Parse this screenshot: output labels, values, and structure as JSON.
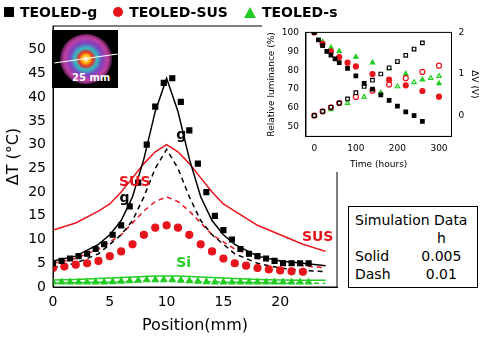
{
  "chart_data": [
    {
      "type": "scatter",
      "x_label": "Position(mm)",
      "y_label": "ΔT (°C)",
      "xlim": [
        0,
        25
      ],
      "xticks": [
        0,
        5,
        10,
        15,
        20
      ],
      "ylim": [
        0,
        55
      ],
      "yticks": [
        0,
        5,
        10,
        15,
        20,
        25,
        30,
        35,
        40,
        45,
        50
      ],
      "grid": false,
      "legend": "top",
      "series": [
        {
          "name": "TEOLED-g",
          "color": "#000000",
          "marker": "square",
          "type": "scatter",
          "x": [
            0,
            0.75,
            1.5,
            2.25,
            3,
            3.75,
            4.5,
            5.25,
            6,
            6.75,
            7.5,
            8.25,
            9,
            9.75,
            10.5,
            11.25,
            12,
            12.75,
            13.5,
            14.25,
            15,
            15.75,
            16.5,
            17.25,
            18,
            18.75,
            19.5,
            20.25,
            21,
            21.75,
            22.5
          ],
          "values": [
            5,
            5.5,
            6,
            6.5,
            7,
            8,
            9,
            11,
            13,
            17,
            22,
            30,
            38,
            43,
            44,
            39,
            33,
            26,
            20,
            15,
            12,
            10,
            8,
            7,
            6.5,
            6,
            5.5,
            5,
            5,
            5,
            5
          ]
        },
        {
          "name": "TEOLED-SUS",
          "color": "#e8141c",
          "marker": "circle",
          "type": "scatter",
          "x": [
            0,
            1,
            2,
            3,
            4,
            5,
            6,
            7,
            8,
            9,
            10,
            11,
            12,
            13,
            14,
            15,
            16,
            17,
            18,
            19,
            20,
            21,
            22
          ],
          "values": [
            4,
            4.3,
            4.7,
            5,
            5.5,
            6.5,
            7.5,
            9,
            11,
            12.5,
            13,
            12.5,
            11,
            9,
            7.5,
            6,
            5,
            4.5,
            4,
            3.7,
            3.5,
            3.3,
            3.2
          ]
        },
        {
          "name": "TEOLED-s",
          "color": "#22cc22",
          "marker": "triangle",
          "type": "scatter",
          "x": [
            0,
            0.75,
            1.5,
            2.25,
            3,
            3.75,
            4.5,
            5.25,
            6,
            6.75,
            7.5,
            8.25,
            9,
            9.75,
            10.5,
            11.25,
            12,
            12.75,
            13.5,
            14.25,
            15,
            15.75,
            16.5,
            17.25,
            18,
            18.75,
            19.5,
            20.25,
            21,
            21.75,
            22.5
          ],
          "values": [
            1,
            1,
            1,
            1,
            1,
            1,
            1,
            1.1,
            1.2,
            1.3,
            1.4,
            1.5,
            1.5,
            1.5,
            1.5,
            1.4,
            1.3,
            1.2,
            1.1,
            1,
            1,
            1,
            1,
            1,
            1,
            1,
            1,
            1,
            1,
            1,
            1
          ]
        },
        {
          "color": "#000000",
          "type": "line",
          "line_style": "solid",
          "x": [
            0,
            2,
            4,
            5,
            6,
            7,
            8,
            9,
            10,
            11,
            12,
            13,
            14,
            15,
            16,
            18,
            20,
            22,
            24
          ],
          "values": [
            5.5,
            6.5,
            9,
            11,
            14,
            19,
            27,
            37,
            44,
            37,
            27,
            19,
            14,
            11,
            9,
            6.5,
            5.5,
            5,
            4.5
          ]
        },
        {
          "color": "#000000",
          "type": "line",
          "line_style": "dashed",
          "x": [
            0,
            2,
            4,
            5,
            6,
            7,
            8,
            9,
            10,
            11,
            12,
            13,
            14,
            15,
            16,
            18,
            20,
            22,
            24
          ],
          "values": [
            4,
            5,
            7,
            9,
            11,
            14,
            19,
            25,
            29,
            25,
            19,
            14,
            11,
            9,
            7,
            5,
            4,
            3.5,
            3.2
          ]
        },
        {
          "color": "#e8141c",
          "type": "line",
          "line_style": "solid",
          "x": [
            0,
            2,
            4,
            5,
            6,
            7,
            8,
            9,
            10,
            11,
            12,
            13,
            14,
            15,
            16,
            18,
            20,
            22,
            24
          ],
          "values": [
            12,
            13.5,
            16,
            17.5,
            20,
            23,
            26,
            28.5,
            30,
            28.5,
            26,
            23,
            20,
            17.5,
            16,
            13,
            11,
            9,
            7.5
          ]
        },
        {
          "color": "#e8141c",
          "type": "line",
          "line_style": "dashed",
          "x": [
            0,
            2,
            4,
            5,
            6,
            7,
            8,
            9,
            10,
            11,
            12,
            13,
            14,
            15,
            16,
            18,
            20,
            22,
            24
          ],
          "values": [
            5,
            6,
            8,
            9.5,
            11,
            13.5,
            16,
            18,
            19,
            18,
            16,
            13.5,
            11,
            9.5,
            8,
            6,
            5,
            4.5,
            4
          ]
        },
        {
          "color": "#22cc22",
          "type": "line",
          "line_style": "solid",
          "x": [
            0,
            2,
            4,
            5,
            6,
            7,
            8,
            9,
            10,
            11,
            12,
            13,
            14,
            15,
            16,
            18,
            20,
            22,
            24
          ],
          "values": [
            1.5,
            1.6,
            1.8,
            1.9,
            2,
            2.1,
            2.2,
            2.3,
            2.3,
            2.3,
            2.2,
            2.1,
            2,
            1.9,
            1.8,
            1.6,
            1.5,
            1.4,
            1.4
          ]
        },
        {
          "color": "#22cc22",
          "type": "line",
          "line_style": "dashed",
          "x": [
            0,
            2,
            4,
            5,
            6,
            7,
            8,
            9,
            10,
            11,
            12,
            13,
            14,
            15,
            16,
            18,
            20,
            22,
            24
          ],
          "values": [
            0.8,
            0.9,
            1,
            1,
            1.1,
            1.1,
            1.2,
            1.2,
            1.2,
            1.2,
            1.2,
            1.1,
            1.1,
            1,
            1,
            0.9,
            0.8,
            0.8,
            0.8
          ]
        }
      ],
      "annotations": [
        {
          "text": "g",
          "x": 11.3,
          "y": 32,
          "color": "#000000"
        },
        {
          "text": "g",
          "x": 6.3,
          "y": 18.6,
          "color": "#000000"
        },
        {
          "text": "SUS",
          "x": 7.2,
          "y": 22,
          "color": "#e8141c"
        },
        {
          "text": "SUS",
          "x": 23.3,
          "y": 10.5,
          "color": "#e8141c"
        },
        {
          "text": "Si",
          "x": 11.5,
          "y": 5,
          "color": "#22cc22"
        }
      ],
      "simulation_legend": {
        "title": "Simulation Data",
        "column": "h",
        "rows": [
          {
            "label": "Solid",
            "value": 0.005
          },
          {
            "label": "Dash",
            "value": 0.01
          }
        ]
      },
      "image_inset": {
        "label": "25 mm"
      }
    },
    {
      "type": "scatter",
      "x_label": "Time (hours)",
      "y_label": "Relative luminance (%)",
      "y2_label": "ΔV (V)",
      "xlim": [
        -20,
        330
      ],
      "xticks": [
        0,
        100,
        200,
        300
      ],
      "ylim": [
        45,
        100
      ],
      "yticks": [
        50,
        60,
        70,
        80,
        90,
        100
      ],
      "y2lim": [
        -0.5,
        2
      ],
      "y2ticks": [
        0,
        1,
        2
      ],
      "grid": false,
      "series": [
        {
          "color": "#000000",
          "marker": "square",
          "x": [
            0,
            10,
            20,
            30,
            40,
            50,
            60,
            80,
            100,
            120,
            140,
            160,
            180,
            200,
            220,
            240,
            260
          ],
          "values": [
            100,
            96,
            93,
            90,
            88,
            86,
            84,
            81,
            77,
            73,
            70,
            67,
            64,
            61,
            58,
            56,
            53
          ]
        },
        {
          "color": "#000000",
          "marker": "open-square",
          "axis": "y2",
          "x": [
            0,
            20,
            40,
            60,
            80,
            100,
            120,
            140,
            160,
            180,
            200,
            220,
            240,
            260
          ],
          "values": [
            0,
            0.1,
            0.2,
            0.3,
            0.4,
            0.55,
            0.7,
            0.85,
            1,
            1.15,
            1.3,
            1.45,
            1.6,
            1.75
          ]
        },
        {
          "color": "#e8141c",
          "marker": "circle",
          "x": [
            0,
            20,
            40,
            60,
            80,
            100,
            140,
            180,
            220,
            260,
            300
          ],
          "values": [
            100,
            94,
            90,
            87,
            84,
            82,
            78,
            75,
            72,
            69,
            66
          ]
        },
        {
          "color": "#e8141c",
          "marker": "open-circle",
          "axis": "y2",
          "x": [
            0,
            20,
            40,
            60,
            100,
            140,
            180,
            220,
            260,
            300
          ],
          "values": [
            0,
            0.1,
            0.2,
            0.3,
            0.45,
            0.6,
            0.75,
            0.9,
            1.05,
            1.2
          ]
        },
        {
          "color": "#22cc22",
          "marker": "triangle",
          "x": [
            0,
            20,
            40,
            60,
            100,
            140,
            180,
            220,
            260,
            300
          ],
          "values": [
            100,
            95,
            92,
            90,
            87,
            84,
            81,
            78,
            75,
            73
          ]
        },
        {
          "color": "#22cc22",
          "marker": "open-triangle",
          "axis": "y2",
          "x": [
            0,
            40,
            80,
            120,
            160,
            200,
            240,
            280,
            300
          ],
          "values": [
            0,
            0.15,
            0.3,
            0.45,
            0.55,
            0.7,
            0.8,
            0.9,
            0.95
          ]
        }
      ]
    }
  ]
}
